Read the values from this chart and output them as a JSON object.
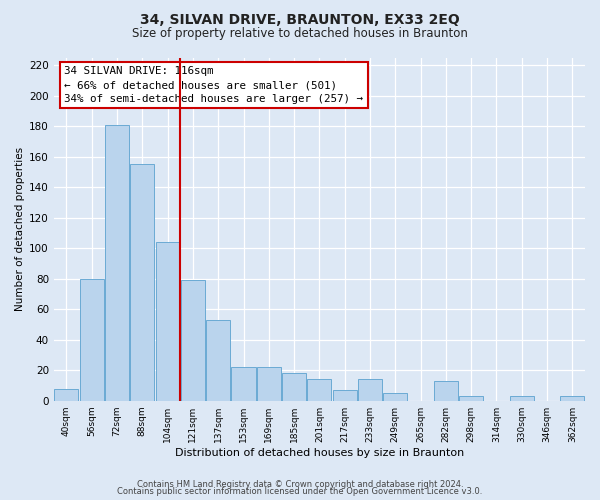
{
  "title": "34, SILVAN DRIVE, BRAUNTON, EX33 2EQ",
  "subtitle": "Size of property relative to detached houses in Braunton",
  "xlabel": "Distribution of detached houses by size in Braunton",
  "ylabel": "Number of detached properties",
  "categories": [
    "40sqm",
    "56sqm",
    "72sqm",
    "88sqm",
    "104sqm",
    "121sqm",
    "137sqm",
    "153sqm",
    "169sqm",
    "185sqm",
    "201sqm",
    "217sqm",
    "233sqm",
    "249sqm",
    "265sqm",
    "282sqm",
    "298sqm",
    "314sqm",
    "330sqm",
    "346sqm",
    "362sqm"
  ],
  "values": [
    8,
    80,
    181,
    155,
    104,
    79,
    53,
    22,
    22,
    18,
    14,
    7,
    14,
    5,
    0,
    13,
    3,
    0,
    3,
    0,
    3
  ],
  "bar_color": "#bad4ed",
  "bar_edge_color": "#6aaad4",
  "vline_x": 4.5,
  "vline_color": "#cc0000",
  "annotation_title": "34 SILVAN DRIVE: 116sqm",
  "annotation_line1": "← 66% of detached houses are smaller (501)",
  "annotation_line2": "34% of semi-detached houses are larger (257) →",
  "annotation_box_edge": "#cc0000",
  "ylim": [
    0,
    225
  ],
  "yticks": [
    0,
    20,
    40,
    60,
    80,
    100,
    120,
    140,
    160,
    180,
    200,
    220
  ],
  "footer1": "Contains HM Land Registry data © Crown copyright and database right 2024.",
  "footer2": "Contains public sector information licensed under the Open Government Licence v3.0.",
  "bg_color": "#dde8f5",
  "plot_bg_color": "#dde8f5",
  "title_fontsize": 10,
  "subtitle_fontsize": 8.5
}
